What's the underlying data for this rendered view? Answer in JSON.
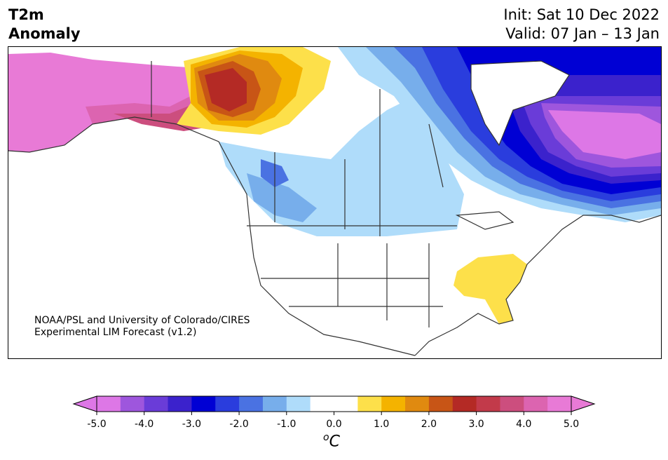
{
  "title": {
    "variable": "T2m",
    "subtitle": "Anomaly",
    "init": "Init: Sat 10 Dec 2022",
    "valid": "Valid: 07 Jan – 13 Jan"
  },
  "credit": {
    "line1": "NOAA/PSL and University of Colorado/CIRES",
    "line2": "Experimental LIM Forecast (v1.2)"
  },
  "colorbar": {
    "unit_sup": "o",
    "unit": "C",
    "ticks": [
      "-5.0",
      "-4.0",
      "-3.0",
      "-2.0",
      "-1.0",
      "0.0",
      "1.0",
      "2.0",
      "3.0",
      "4.0",
      "5.0"
    ],
    "colors": [
      "#dd77e6",
      "#9e56dd",
      "#6a3cd8",
      "#3b22cc",
      "#0000d4",
      "#2a3ddd",
      "#4a72e2",
      "#77aeeb",
      "#afdcfa",
      "#ffffff",
      "#ffffff",
      "#fde04a",
      "#f4b300",
      "#e08a10",
      "#c85516",
      "#b42a25",
      "#c23a4a",
      "#cc4e7e",
      "#dc64b0",
      "#e87ad6"
    ],
    "under_color": "#dd77e6",
    "over_color": "#e87ad6"
  },
  "map": {
    "region": "North America",
    "features": [
      "warm anomaly Alaska / Yukon",
      "cold anomaly eastern Canada / Hudson Bay",
      "cool anomaly northern Rockies / Plains",
      "warm anomaly Southeast US"
    ]
  }
}
